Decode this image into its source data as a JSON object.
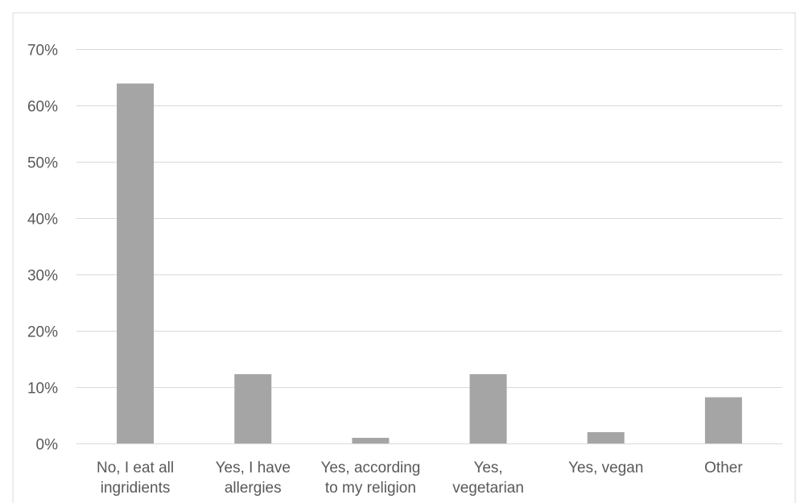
{
  "chart_data": {
    "type": "bar",
    "title": "",
    "xlabel": "",
    "ylabel": "",
    "ylim": [
      0,
      70
    ],
    "y_ticks": [
      0,
      10,
      20,
      30,
      40,
      50,
      60,
      70
    ],
    "y_tick_labels": [
      "0%",
      "10%",
      "20%",
      "30%",
      "40%",
      "50%",
      "60%",
      "70%"
    ],
    "grid": true,
    "legend": "none",
    "categories": [
      [
        "No, I eat all",
        "ingridients"
      ],
      [
        "Yes, I have",
        "allergies"
      ],
      [
        "Yes, according",
        "to my religion"
      ],
      [
        "Yes,",
        "vegetarian"
      ],
      [
        "Yes, vegan"
      ],
      [
        "Other"
      ]
    ],
    "values": [
      63.9,
      12.3,
      1.0,
      12.3,
      2.0,
      8.2
    ],
    "colors": {
      "bar": "#a5a5a5",
      "grid": "#d9d9d9",
      "axis": "#d9d9d9",
      "text": "#595959",
      "frame": "#d9d9d9"
    }
  }
}
